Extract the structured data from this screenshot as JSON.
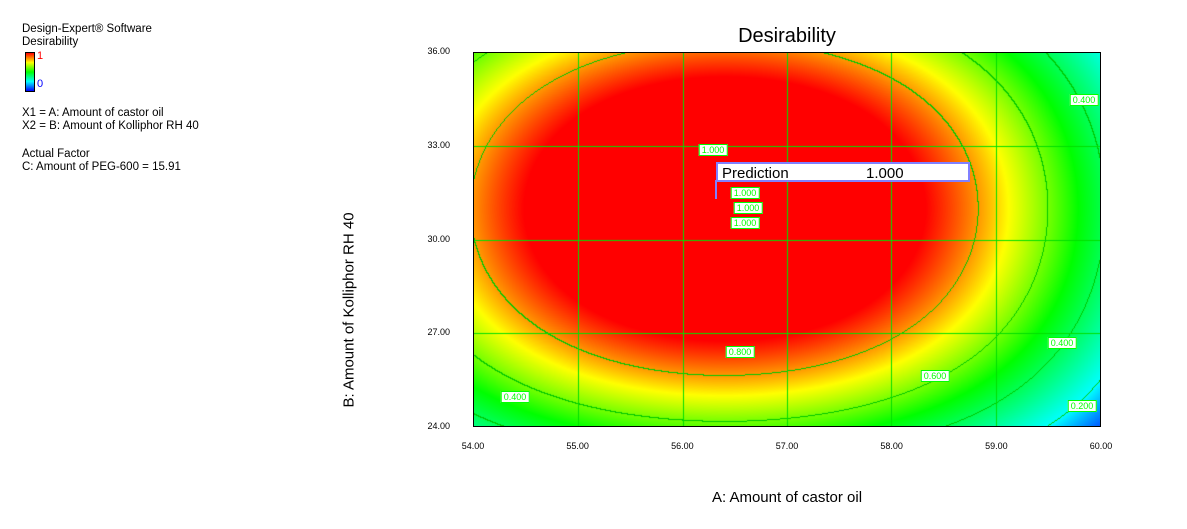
{
  "info": {
    "software": "Design-Expert® Software",
    "response": "Desirability",
    "legend_max": "1",
    "legend_min": "0",
    "x1": "X1 = A: Amount of castor oil",
    "x2": "X2 = B: Amount of Kolliphor RH 40",
    "actual_factor_heading": "Actual Factor",
    "actual_factor": "C: Amount of PEG-600 = 15.91"
  },
  "chart_data": {
    "type": "heatmap",
    "title": "Desirability",
    "xlabel": "A: Amount of castor oil",
    "ylabel": "B: Amount of Kolliphor RH 40",
    "xlim": [
      54,
      60
    ],
    "ylim": [
      24,
      36
    ],
    "xticks": [
      "54.00",
      "55.00",
      "56.00",
      "57.00",
      "58.00",
      "59.00",
      "60.00"
    ],
    "yticks": [
      "24.00",
      "27.00",
      "30.00",
      "33.00",
      "36.00"
    ],
    "grid": true,
    "colorscale": [
      "#0000ff",
      "#00ffff",
      "#00ff00",
      "#ffff00",
      "#ff0000"
    ],
    "contour_levels": [
      0.2,
      0.4,
      0.6,
      0.8,
      1.0
    ],
    "contour_labels": [
      "1.000",
      "1.000",
      "1.000",
      "1.000",
      "0.800",
      "0.600",
      "0.400",
      "0.400",
      "0.400",
      "0.200"
    ],
    "prediction": {
      "label": "Prediction",
      "value": "1.000",
      "x": 56.3,
      "y": 31.4
    }
  }
}
